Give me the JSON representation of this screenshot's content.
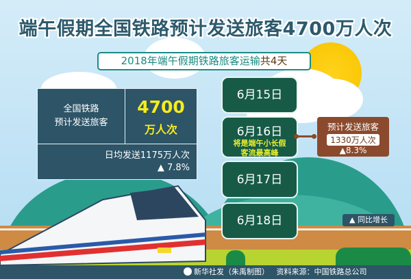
{
  "title": "端午假期全国铁路预计发送旅客4700万人次",
  "subtitle": {
    "text": "2018年端午假期铁路旅客运输",
    "emphasis": "共4天"
  },
  "summary": {
    "label_line1": "全国铁路",
    "label_line2": "预计发送旅客",
    "number": "4700",
    "unit": "万人次",
    "daily": "日均发送1175万人次",
    "growth": "▲ 7.8%"
  },
  "dates": [
    {
      "date": "6月15日"
    },
    {
      "date": "6月16日",
      "note_line1": "将是端午小长假",
      "note_line2": "客流最高峰"
    },
    {
      "date": "6月17日"
    },
    {
      "date": "6月18日"
    }
  ],
  "peak": {
    "label": "预计发送旅客",
    "value": "1330万人次",
    "growth": "▲8.3%"
  },
  "legend": "▲ 同比增长",
  "footer": {
    "credit": "新华社发（朱禹制图）",
    "source": "资料来源：中国铁路总公司"
  },
  "colors": {
    "title": "#2d5a6c",
    "panel": "#2d5467",
    "date_box": "#175b47",
    "highlight": "#f6ec1c",
    "peak_box": "#8b4a2d"
  }
}
